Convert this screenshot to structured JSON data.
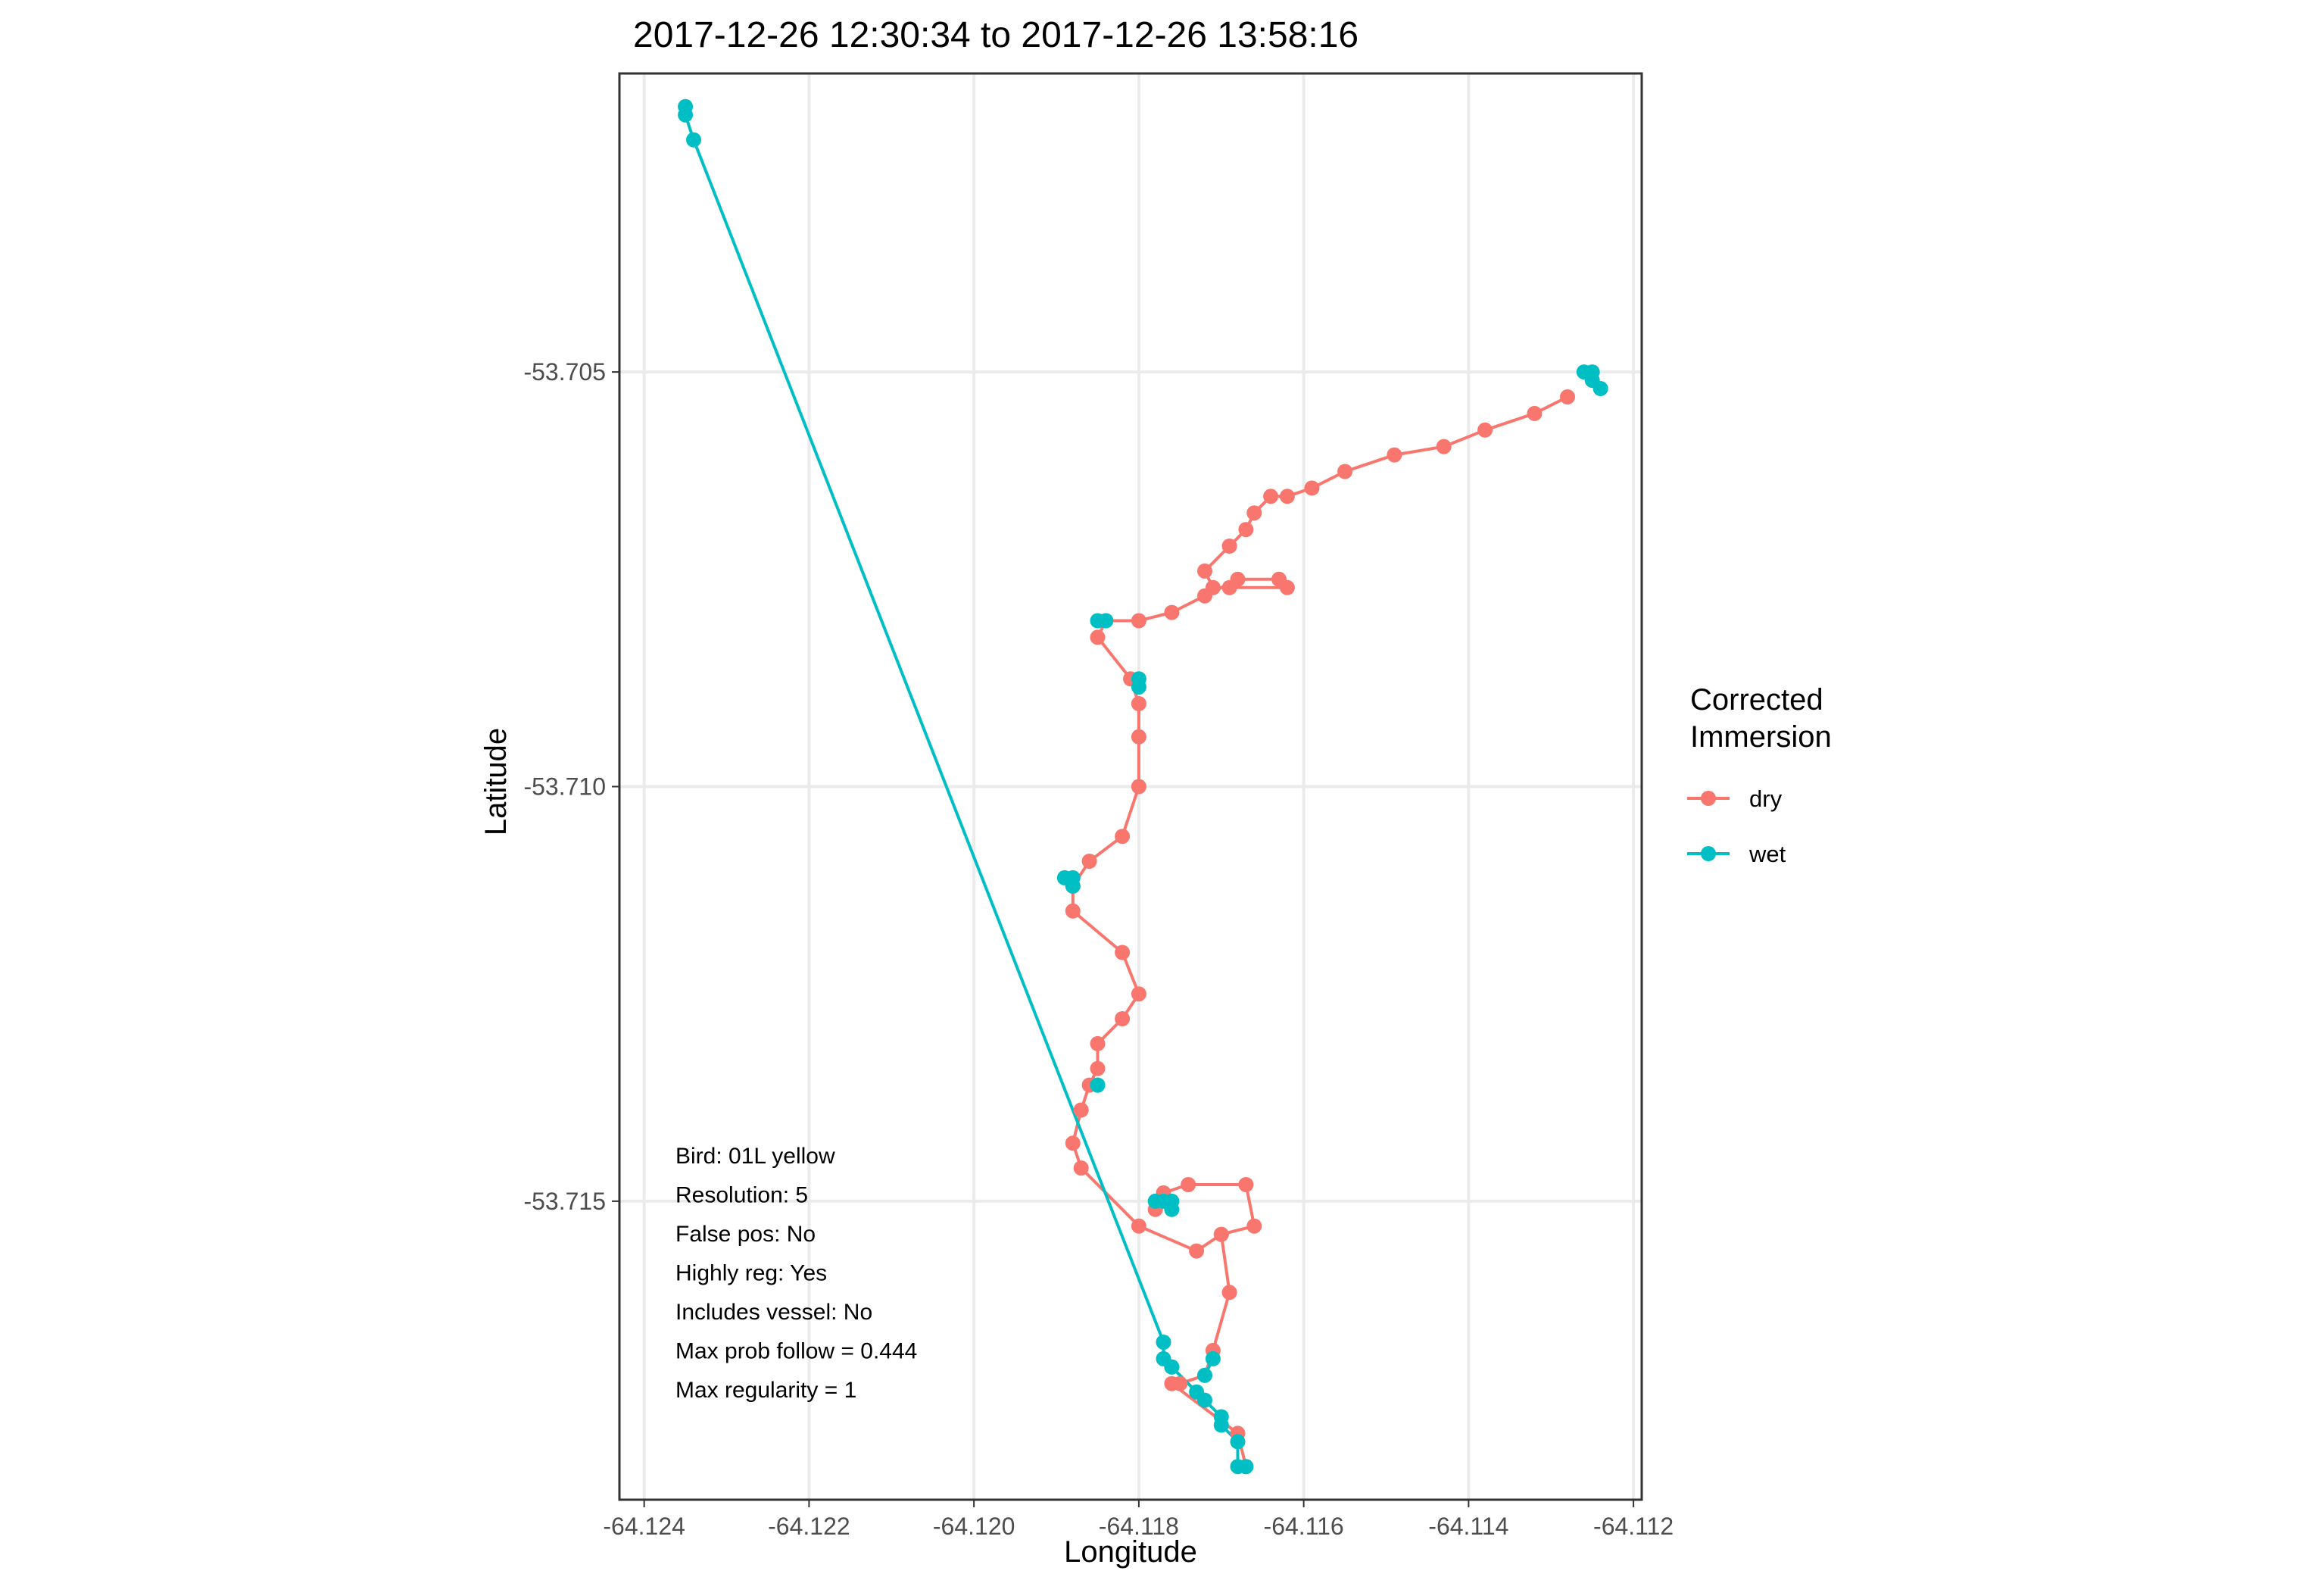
{
  "chart_data": {
    "type": "scatter",
    "title": "2017-12-26 12:30:34 to 2017-12-26 13:58:16",
    "xlabel": "Longitude",
    "ylabel": "Latitude",
    "xlim": [
      -64.1243,
      -64.1119
    ],
    "ylim": [
      -53.7186,
      -53.7014
    ],
    "x_ticks": [
      -64.124,
      -64.122,
      -64.12,
      -64.118,
      -64.116,
      -64.114,
      -64.112
    ],
    "x_tick_labels": [
      "-64.124",
      "-64.122",
      "-64.120",
      "-64.118",
      "-64.116",
      "-64.114",
      "-64.112"
    ],
    "y_ticks": [
      -53.705,
      -53.71,
      -53.715
    ],
    "y_tick_labels": [
      "-53.705",
      "-53.710",
      "-53.715"
    ],
    "grid": true,
    "legend": {
      "title_lines": [
        "Corrected",
        "Immersion"
      ],
      "placement": "right",
      "entries": [
        {
          "label": "dry",
          "color": "#F8766D"
        },
        {
          "label": "wet",
          "color": "#00BFC4"
        }
      ]
    },
    "series": [
      {
        "name": "dry",
        "color": "#F8766D",
        "segments": [
          [
            [
              -64.1128,
              -53.7053
            ],
            [
              -64.1132,
              -53.7055
            ],
            [
              -64.1138,
              -53.7057
            ],
            [
              -64.1143,
              -53.7059
            ],
            [
              -64.1149,
              -53.706
            ],
            [
              -64.1155,
              -53.7062
            ],
            [
              -64.1159,
              -53.7064
            ],
            [
              -64.1162,
              -53.7065
            ],
            [
              -64.1164,
              -53.7065
            ],
            [
              -64.1166,
              -53.7067
            ],
            [
              -64.1167,
              -53.7069
            ],
            [
              -64.1169,
              -53.7071
            ],
            [
              -64.1172,
              -53.7074
            ],
            [
              -64.1171,
              -53.7076
            ],
            [
              -64.1169,
              -53.7076
            ],
            [
              -64.1162,
              -53.7076
            ],
            [
              -64.1163,
              -53.7075
            ],
            [
              -64.1168,
              -53.7075
            ],
            [
              -64.1172,
              -53.7077
            ],
            [
              -64.1176,
              -53.7079
            ],
            [
              -64.118,
              -53.708
            ],
            [
              -64.1184,
              -53.708
            ],
            [
              -64.1185,
              -53.7082
            ],
            [
              -64.1181,
              -53.7087
            ],
            [
              -64.118,
              -53.709
            ],
            [
              -64.118,
              -53.7094
            ],
            [
              -64.118,
              -53.71
            ],
            [
              -64.1182,
              -53.7106
            ],
            [
              -64.1186,
              -53.7109
            ],
            [
              -64.1188,
              -53.7112
            ],
            [
              -64.1188,
              -53.7115
            ],
            [
              -64.1182,
              -53.712
            ],
            [
              -64.118,
              -53.7125
            ],
            [
              -64.1182,
              -53.7128
            ],
            [
              -64.1185,
              -53.7131
            ],
            [
              -64.1185,
              -53.7134
            ],
            [
              -64.1186,
              -53.7136
            ],
            [
              -64.1187,
              -53.7139
            ],
            [
              -64.1188,
              -53.7143
            ],
            [
              -64.1187,
              -53.7146
            ],
            [
              -64.118,
              -53.7153
            ],
            [
              -64.1173,
              -53.7156
            ],
            [
              -64.117,
              -53.7154
            ],
            [
              -64.1166,
              -53.7153
            ],
            [
              -64.1167,
              -53.7148
            ],
            [
              -64.1174,
              -53.7148
            ],
            [
              -64.1177,
              -53.7149
            ],
            [
              -64.1178,
              -53.7151
            ]
          ],
          [
            [
              -64.117,
              -53.7154
            ],
            [
              -64.1169,
              -53.7161
            ],
            [
              -64.1171,
              -53.7168
            ],
            [
              -64.1172,
              -53.7171
            ],
            [
              -64.1175,
              -53.7172
            ],
            [
              -64.1176,
              -53.7172
            ],
            [
              -64.1168,
              -53.7178
            ],
            [
              -64.1167,
              -53.7182
            ]
          ]
        ]
      },
      {
        "name": "wet",
        "color": "#00BFC4",
        "segments": [
          [
            [
              -64.1235,
              -53.7018
            ],
            [
              -64.1235,
              -53.7019
            ],
            [
              -64.1234,
              -53.7022
            ],
            [
              -64.1177,
              -53.7167
            ],
            [
              -64.1177,
              -53.7169
            ],
            [
              -64.1176,
              -53.717
            ],
            [
              -64.1176,
              -53.717
            ],
            [
              -64.1173,
              -53.7173
            ],
            [
              -64.1172,
              -53.7174
            ],
            [
              -64.117,
              -53.7176
            ],
            [
              -64.117,
              -53.7177
            ],
            [
              -64.1168,
              -53.7179
            ],
            [
              -64.1168,
              -53.7182
            ],
            [
              -64.1167,
              -53.7182
            ]
          ],
          [
            [
              -64.1126,
              -53.705
            ],
            [
              -64.1125,
              -53.705
            ],
            [
              -64.1125,
              -53.7051
            ],
            [
              -64.1124,
              -53.7052
            ]
          ],
          [
            [
              -64.1185,
              -53.708
            ],
            [
              -64.1184,
              -53.708
            ]
          ],
          [
            [
              -64.118,
              -53.7087
            ],
            [
              -64.118,
              -53.7088
            ]
          ],
          [
            [
              -64.1189,
              -53.7111
            ],
            [
              -64.1188,
              -53.7111
            ],
            [
              -64.1188,
              -53.7112
            ]
          ],
          [
            [
              -64.1185,
              -53.7136
            ],
            [
              -64.1185,
              -53.7136
            ]
          ],
          [
            [
              -64.1178,
              -53.715
            ],
            [
              -64.1177,
              -53.715
            ],
            [
              -64.1176,
              -53.715
            ],
            [
              -64.1176,
              -53.7151
            ]
          ],
          [
            [
              -64.1172,
              -53.7171
            ],
            [
              -64.1171,
              -53.7169
            ]
          ]
        ]
      }
    ],
    "annotation_lines": [
      "Bird: 01L yellow",
      "Resolution: 5",
      "False pos: No",
      "Highly reg: Yes",
      "Includes vessel: No",
      "Max prob follow = 0.444",
      "Max regularity = 1"
    ]
  }
}
